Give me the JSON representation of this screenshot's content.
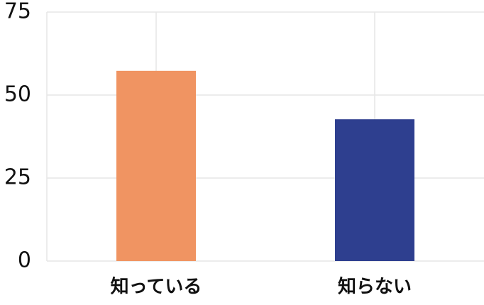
{
  "chart_data": {
    "type": "bar",
    "categories": [
      "知っている",
      "知らない"
    ],
    "values": [
      57.3,
      42.7
    ],
    "colors": [
      "#f09462",
      "#2e3f8f"
    ],
    "ylim": [
      0,
      75
    ],
    "yticks": [
      0,
      25,
      50,
      75
    ],
    "grid": true
  }
}
